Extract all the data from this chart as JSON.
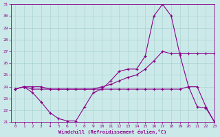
{
  "xlabel": "Windchill (Refroidissement éolien,°C)",
  "xlim": [
    -0.5,
    23
  ],
  "ylim": [
    21,
    31
  ],
  "yticks": [
    21,
    22,
    23,
    24,
    25,
    26,
    27,
    28,
    29,
    30,
    31
  ],
  "xticks": [
    0,
    1,
    2,
    3,
    4,
    5,
    6,
    7,
    8,
    9,
    10,
    11,
    12,
    13,
    14,
    15,
    16,
    17,
    18,
    19,
    20,
    21,
    22,
    23
  ],
  "bg_color": "#cce9e9",
  "grid_color": "#aad4d4",
  "line_color": "#880088",
  "line1_x": [
    0,
    1,
    2,
    3,
    4,
    5,
    6,
    7,
    8,
    9,
    10,
    11,
    12,
    13,
    14,
    15,
    16,
    17,
    18,
    19,
    20,
    21,
    22,
    23
  ],
  "line1_y": [
    23.8,
    24.0,
    24.0,
    24.0,
    23.8,
    23.8,
    23.8,
    23.8,
    23.8,
    23.8,
    24.0,
    24.2,
    24.5,
    24.8,
    25.0,
    25.5,
    26.2,
    27.0,
    26.8,
    26.8,
    26.8,
    26.8,
    26.8,
    26.8
  ],
  "line2_x": [
    0,
    1,
    2,
    3,
    4,
    5,
    6,
    7,
    8,
    9,
    10,
    11,
    12,
    13,
    14,
    15,
    16,
    17,
    18,
    19,
    20,
    21,
    22,
    23
  ],
  "line2_y": [
    23.8,
    24.0,
    23.8,
    23.8,
    23.8,
    23.8,
    23.8,
    23.8,
    23.8,
    23.8,
    23.8,
    23.8,
    23.8,
    23.8,
    23.8,
    23.8,
    23.8,
    23.8,
    23.8,
    23.8,
    24.0,
    24.0,
    22.3,
    21.0
  ],
  "line3_x": [
    0,
    1,
    2,
    3,
    4,
    5,
    6,
    7,
    8,
    9,
    10,
    11,
    12,
    13,
    14,
    15,
    16,
    17,
    18,
    19,
    20,
    21,
    22,
    23
  ],
  "line3_y": [
    23.8,
    24.0,
    23.5,
    22.7,
    21.8,
    21.3,
    21.1,
    21.1,
    22.3,
    23.5,
    23.8,
    24.5,
    25.3,
    25.5,
    25.5,
    26.6,
    30.0,
    31.0,
    30.0,
    26.7,
    24.0,
    22.3,
    22.2,
    21.0
  ]
}
